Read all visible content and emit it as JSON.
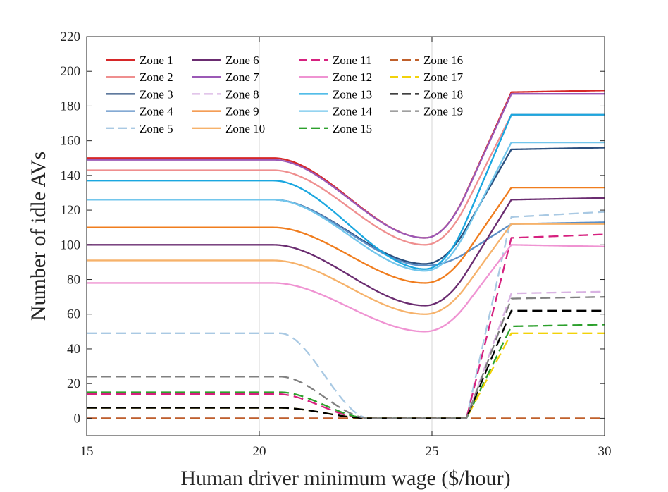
{
  "chart_data": {
    "type": "line",
    "xlabel": "Human driver minimum wage ($/hour)",
    "ylabel": "Number of idle AVs",
    "xlim": [
      15,
      30
    ],
    "ylim": [
      -10,
      220
    ],
    "xticks": [
      15,
      20,
      25,
      30
    ],
    "yticks": [
      0,
      20,
      40,
      60,
      80,
      100,
      120,
      140,
      160,
      180,
      200,
      220
    ],
    "grid": "x-only",
    "legend_position": "top-left",
    "legend_columns": 4,
    "series": [
      {
        "name": "Zone 1",
        "color": "#d62728",
        "dash": "solid",
        "params": {
          "p": 150,
          "m": 104,
          "h": 188,
          "tr": 189
        }
      },
      {
        "name": "Zone 2",
        "color": "#ef8f8f",
        "dash": "solid",
        "params": {
          "p": 143,
          "m": 100,
          "h": 175,
          "tr": 175
        }
      },
      {
        "name": "Zone 3",
        "color": "#2b4f7e",
        "dash": "solid",
        "params": {
          "p": 126,
          "m": 89,
          "h": 155,
          "tr": 156
        }
      },
      {
        "name": "Zone 4",
        "color": "#5b8ec6",
        "dash": "solid",
        "params": {
          "p": 126,
          "m": 88,
          "h": 112,
          "tr": 113
        }
      },
      {
        "name": "Zone 5",
        "color": "#a9c9e3",
        "dash": "dashed",
        "params": {
          "p": 49,
          "m": 0,
          "h": 116,
          "tr": 119,
          "d": 20.6
        }
      },
      {
        "name": "Zone 6",
        "color": "#6a2c70",
        "dash": "solid",
        "params": {
          "p": 100,
          "m": 65,
          "h": 126,
          "tr": 127
        }
      },
      {
        "name": "Zone 7",
        "color": "#9b59b6",
        "dash": "solid",
        "params": {
          "p": 149,
          "m": 104,
          "h": 187,
          "tr": 187
        }
      },
      {
        "name": "Zone 8",
        "color": "#d9b3e3",
        "dash": "dashed",
        "params": {
          "p": 0,
          "m": 0,
          "h": 72,
          "tr": 73
        }
      },
      {
        "name": "Zone 9",
        "color": "#f07d1e",
        "dash": "solid",
        "params": {
          "p": 110,
          "m": 78,
          "h": 133,
          "tr": 133
        }
      },
      {
        "name": "Zone 10",
        "color": "#f6b26b",
        "dash": "solid",
        "params": {
          "p": 91,
          "m": 60,
          "h": 112,
          "tr": 112
        }
      },
      {
        "name": "Zone 11",
        "color": "#d6217f",
        "dash": "dashed",
        "params": {
          "p": 14,
          "m": 0,
          "h": 104,
          "tr": 106,
          "d": 20.5
        }
      },
      {
        "name": "Zone 12",
        "color": "#ef93d2",
        "dash": "solid",
        "params": {
          "p": 78,
          "m": 50,
          "h": 100,
          "tr": 99
        }
      },
      {
        "name": "Zone 13",
        "color": "#1aa7e0",
        "dash": "solid",
        "params": {
          "p": 137,
          "m": 86,
          "h": 175,
          "tr": 175
        }
      },
      {
        "name": "Zone 14",
        "color": "#72c6ec",
        "dash": "solid",
        "params": {
          "p": 126,
          "m": 85,
          "h": 159,
          "tr": 159
        }
      },
      {
        "name": "Zone 15",
        "color": "#2ca02c",
        "dash": "dashed",
        "params": {
          "p": 15,
          "m": 0,
          "h": 53,
          "tr": 54,
          "d": 20.6
        }
      },
      {
        "name": "Zone 16",
        "color": "#c0602b",
        "dash": "dashed",
        "params": {
          "p": 0,
          "m": 0,
          "h": 0,
          "tr": 0
        }
      },
      {
        "name": "Zone 17",
        "color": "#f2d20a",
        "dash": "dashed",
        "params": {
          "p": 6,
          "m": 0,
          "h": 49,
          "tr": 49,
          "d": 20.6
        }
      },
      {
        "name": "Zone 18",
        "color": "#000000",
        "dash": "dashed",
        "params": {
          "p": 6,
          "m": 0,
          "h": 62,
          "tr": 62,
          "d": 20.6
        }
      },
      {
        "name": "Zone 19",
        "color": "#808080",
        "dash": "dashed",
        "params": {
          "p": 24,
          "m": 0,
          "h": 69,
          "tr": 70,
          "d": 20.6
        }
      }
    ]
  }
}
